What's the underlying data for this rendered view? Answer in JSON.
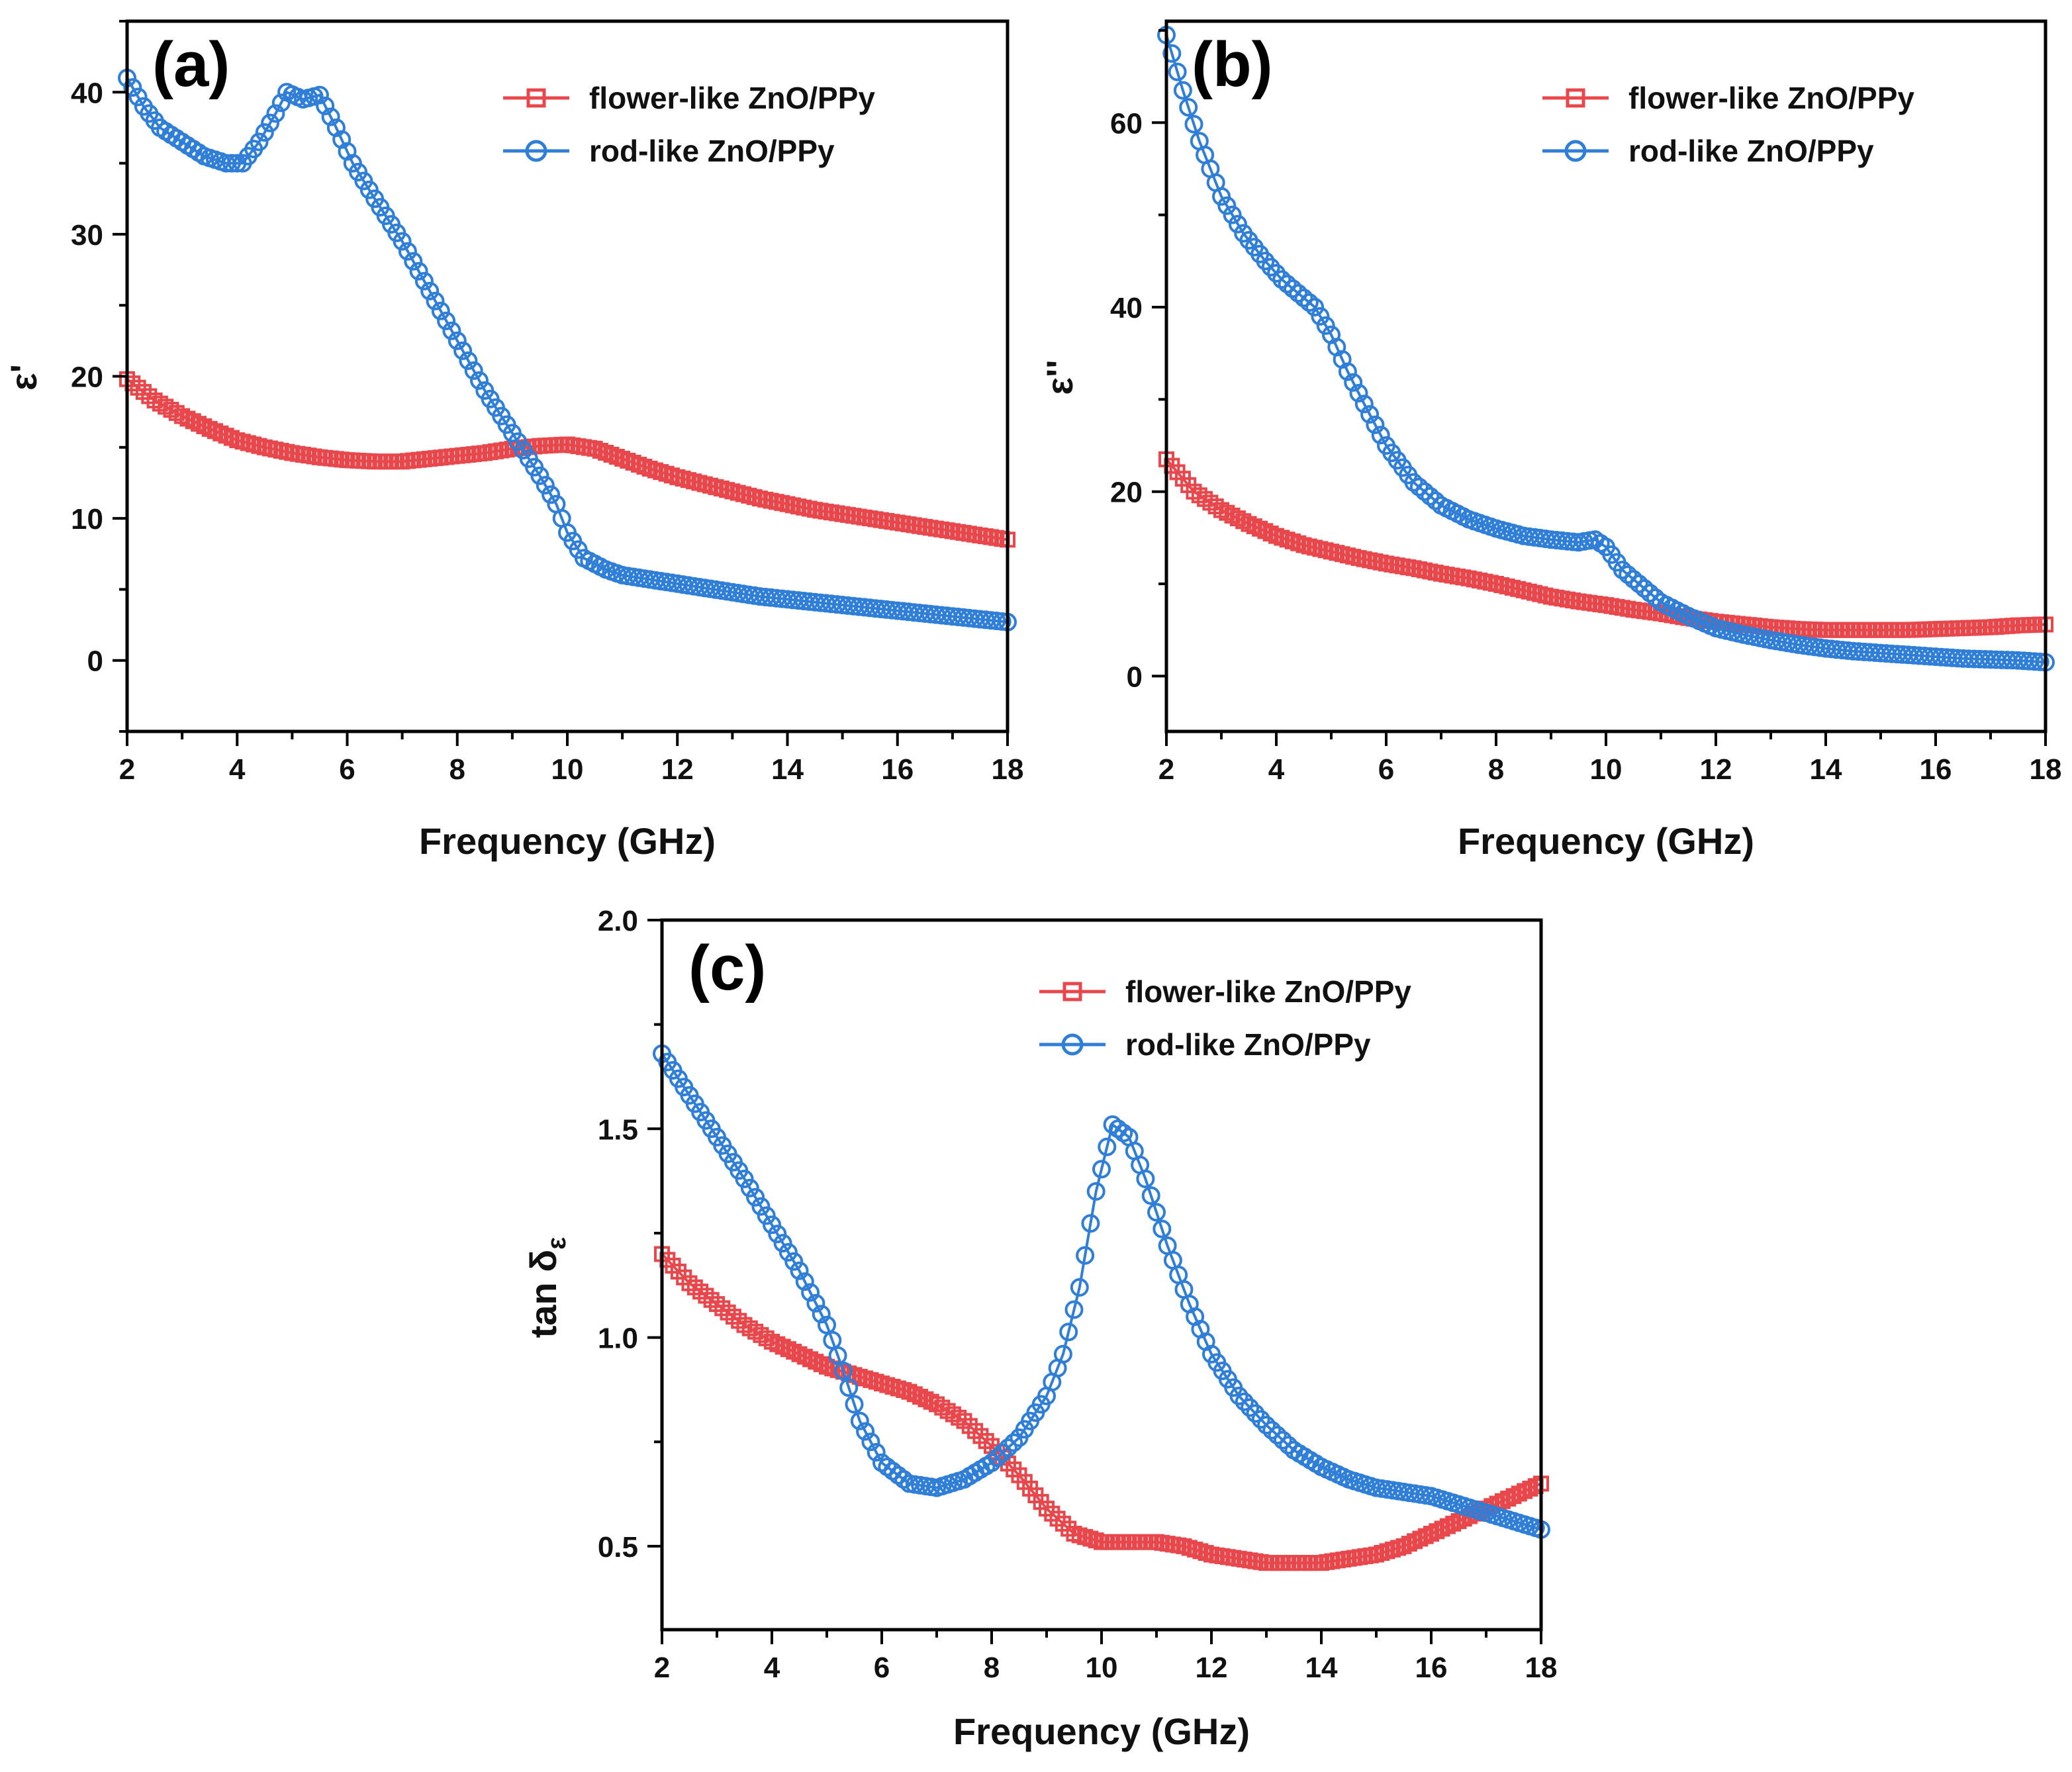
{
  "colors": {
    "flower": "#e8474c",
    "rod": "#2f7ed8",
    "axis": "#000000"
  },
  "chart_data": [
    {
      "id": "a",
      "type": "line",
      "panel_label": "(a)",
      "xlabel": "Frequency (GHz)",
      "ylabel": "ε'",
      "xlim": [
        2,
        18
      ],
      "ylim": [
        -5,
        45
      ],
      "xticks": [
        2,
        4,
        6,
        8,
        10,
        12,
        14,
        16,
        18
      ],
      "xtick_labels": [
        "2",
        "4",
        "6",
        "8",
        "10",
        "12",
        "14",
        "16",
        "18"
      ],
      "yticks": [
        0,
        10,
        20,
        30,
        40
      ],
      "ytick_labels": [
        "0",
        "10",
        "20",
        "30",
        "40"
      ],
      "legend_position": "top-right",
      "series": [
        {
          "name": "flower-like ZnO/PPy",
          "marker": "square",
          "x": [
            2,
            2.5,
            3,
            3.5,
            4,
            4.5,
            5,
            5.5,
            6,
            6.5,
            7,
            7.5,
            8,
            8.5,
            9,
            9.5,
            10,
            10.5,
            11,
            11.5,
            12,
            12.5,
            13,
            13.5,
            14,
            14.5,
            15,
            15.5,
            16,
            16.5,
            17,
            17.5,
            18
          ],
          "y": [
            19.8,
            18.3,
            17.2,
            16.3,
            15.5,
            15.0,
            14.6,
            14.3,
            14.1,
            14.0,
            14.0,
            14.2,
            14.4,
            14.6,
            14.9,
            15.1,
            15.2,
            14.9,
            14.2,
            13.5,
            12.9,
            12.4,
            11.9,
            11.4,
            11.0,
            10.6,
            10.3,
            10.0,
            9.7,
            9.4,
            9.1,
            8.8,
            8.5
          ]
        },
        {
          "name": "rod-like ZnO/PPy",
          "marker": "circle",
          "x": [
            2,
            2.3,
            2.6,
            3,
            3.4,
            3.8,
            4.1,
            4.4,
            4.7,
            4.9,
            5.2,
            5.5,
            5.8,
            6.1,
            6.5,
            7,
            7.5,
            8,
            8.5,
            9,
            9.5,
            9.8,
            10,
            10.3,
            10.7,
            11,
            11.5,
            12,
            12.5,
            13,
            13.5,
            14,
            14.5,
            15,
            15.5,
            16,
            16.5,
            17,
            17.5,
            18
          ],
          "y": [
            41,
            39,
            37.5,
            36.5,
            35.5,
            35,
            35,
            36.5,
            38.5,
            40,
            39.5,
            39.8,
            37.5,
            35,
            32.5,
            29.5,
            26,
            22.5,
            19,
            16,
            13,
            11,
            9,
            7.2,
            6.4,
            6.0,
            5.7,
            5.4,
            5.1,
            4.8,
            4.5,
            4.3,
            4.1,
            3.9,
            3.7,
            3.5,
            3.3,
            3.1,
            2.9,
            2.7
          ]
        }
      ]
    },
    {
      "id": "b",
      "type": "line",
      "panel_label": "(b)",
      "xlabel": "Frequency (GHz)",
      "ylabel": "ε''",
      "xlim": [
        2,
        18
      ],
      "ylim": [
        -6,
        71
      ],
      "xticks": [
        2,
        4,
        6,
        8,
        10,
        12,
        14,
        16,
        18
      ],
      "xtick_labels": [
        "2",
        "4",
        "6",
        "8",
        "10",
        "12",
        "14",
        "16",
        "18"
      ],
      "yticks": [
        0,
        20,
        40,
        60
      ],
      "ytick_labels": [
        "0",
        "20",
        "40",
        "60"
      ],
      "legend_position": "top-right",
      "series": [
        {
          "name": "flower-like ZnO/PPy",
          "marker": "square",
          "x": [
            2,
            2.5,
            3,
            3.5,
            4,
            4.5,
            5,
            5.5,
            6,
            6.5,
            7,
            7.5,
            8,
            8.5,
            9,
            9.5,
            10,
            10.5,
            11,
            11.5,
            12,
            12.5,
            13,
            13.5,
            14,
            14.5,
            15,
            15.5,
            16,
            16.5,
            17,
            17.5,
            18
          ],
          "y": [
            23.5,
            20,
            18,
            16.5,
            15.2,
            14.2,
            13.5,
            12.8,
            12.2,
            11.7,
            11.1,
            10.6,
            10.0,
            9.3,
            8.6,
            8.1,
            7.7,
            7.2,
            6.8,
            6.3,
            5.9,
            5.6,
            5.3,
            5.1,
            5.0,
            5.0,
            5.0,
            5.0,
            5.1,
            5.2,
            5.3,
            5.5,
            5.6
          ]
        },
        {
          "name": "rod-like ZnO/PPy",
          "marker": "circle",
          "x": [
            2,
            2.3,
            2.6,
            3,
            3.4,
            3.8,
            4.1,
            4.4,
            4.7,
            5,
            5.3,
            5.6,
            6,
            6.5,
            7,
            7.5,
            8,
            8.5,
            9,
            9.5,
            9.8,
            10,
            10.3,
            10.7,
            11,
            11.5,
            12,
            12.5,
            13,
            13.5,
            14,
            14.5,
            15,
            15.5,
            16,
            16.5,
            17,
            17.5,
            18
          ],
          "y": [
            69.5,
            63.5,
            58,
            52,
            48,
            45,
            43,
            41.5,
            40,
            37,
            33,
            29.5,
            25,
            21,
            18.5,
            17,
            16,
            15.2,
            14.8,
            14.5,
            14.8,
            14,
            11.5,
            9.5,
            8,
            6.5,
            5.2,
            4.5,
            3.9,
            3.4,
            3.0,
            2.7,
            2.5,
            2.3,
            2.1,
            1.9,
            1.8,
            1.7,
            1.5
          ]
        }
      ]
    },
    {
      "id": "c",
      "type": "line",
      "panel_label": "(c)",
      "xlabel": "Frequency (GHz)",
      "ylabel": "tan δ",
      "ylabel_sub": "ε",
      "xlim": [
        2,
        18
      ],
      "ylim": [
        0.3,
        2.0
      ],
      "xticks": [
        2,
        4,
        6,
        8,
        10,
        12,
        14,
        16,
        18
      ],
      "xtick_labels": [
        "2",
        "4",
        "6",
        "8",
        "10",
        "12",
        "14",
        "16",
        "18"
      ],
      "yticks": [
        0.5,
        1.0,
        1.5,
        2.0
      ],
      "ytick_labels": [
        "0.5",
        "1.0",
        "1.5",
        "2.0"
      ],
      "legend_position": "top-right",
      "series": [
        {
          "name": "flower-like ZnO/PPy",
          "marker": "square",
          "x": [
            2,
            2.5,
            3,
            3.5,
            4,
            4.5,
            5,
            5.5,
            6,
            6.5,
            7,
            7.5,
            8,
            8.5,
            9,
            9.5,
            10,
            10.5,
            11,
            11.5,
            12,
            12.5,
            13,
            13.5,
            14,
            14.5,
            15,
            15.5,
            16,
            16.5,
            17,
            17.5,
            18
          ],
          "y": [
            1.2,
            1.13,
            1.08,
            1.03,
            0.99,
            0.96,
            0.93,
            0.91,
            0.89,
            0.87,
            0.84,
            0.8,
            0.74,
            0.67,
            0.59,
            0.53,
            0.51,
            0.51,
            0.51,
            0.5,
            0.48,
            0.47,
            0.46,
            0.46,
            0.46,
            0.47,
            0.48,
            0.5,
            0.53,
            0.56,
            0.59,
            0.62,
            0.65
          ]
        },
        {
          "name": "rod-like ZnO/PPy",
          "marker": "circle",
          "x": [
            2,
            2.5,
            3,
            3.5,
            4,
            4.5,
            5,
            5.3,
            5.6,
            6,
            6.5,
            7,
            7.5,
            8,
            8.5,
            9,
            9.3,
            9.6,
            9.9,
            10.2,
            10.5,
            10.8,
            11.2,
            11.6,
            12,
            12.5,
            13,
            13.5,
            14,
            14.5,
            15,
            15.5,
            16,
            16.5,
            17,
            17.5,
            18
          ],
          "y": [
            1.68,
            1.58,
            1.48,
            1.38,
            1.27,
            1.16,
            1.03,
            0.92,
            0.8,
            0.7,
            0.65,
            0.64,
            0.66,
            0.7,
            0.76,
            0.86,
            0.96,
            1.12,
            1.35,
            1.51,
            1.48,
            1.38,
            1.22,
            1.08,
            0.96,
            0.86,
            0.79,
            0.73,
            0.69,
            0.66,
            0.64,
            0.63,
            0.62,
            0.6,
            0.58,
            0.56,
            0.54
          ]
        }
      ]
    }
  ]
}
